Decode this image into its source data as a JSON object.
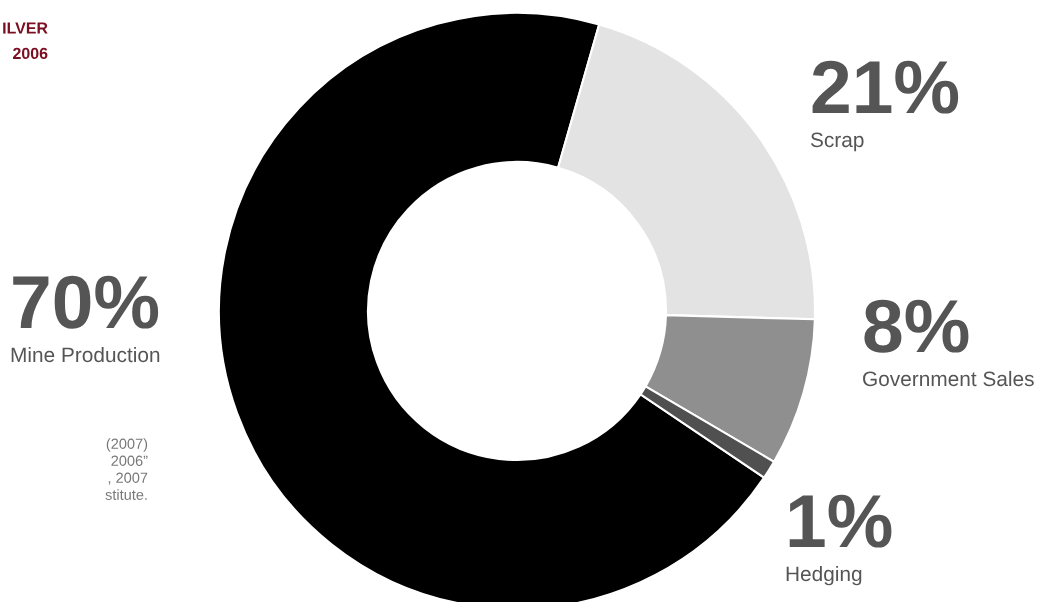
{
  "chart_data": {
    "type": "donut",
    "title": "ILVER\n2006",
    "categories": [
      "Mine Production",
      "Scrap",
      "Government Sales",
      "Hedging"
    ],
    "values": [
      70,
      21,
      8,
      1
    ],
    "colors": [
      "#000000",
      "#e3e3e3",
      "#8f8f8f",
      "#505050"
    ],
    "value_labels": [
      "70%",
      "21%",
      "8%",
      "1%"
    ],
    "annotations": [
      "(2007)",
      "2006”",
      ", 2007",
      "stitute."
    ]
  }
}
